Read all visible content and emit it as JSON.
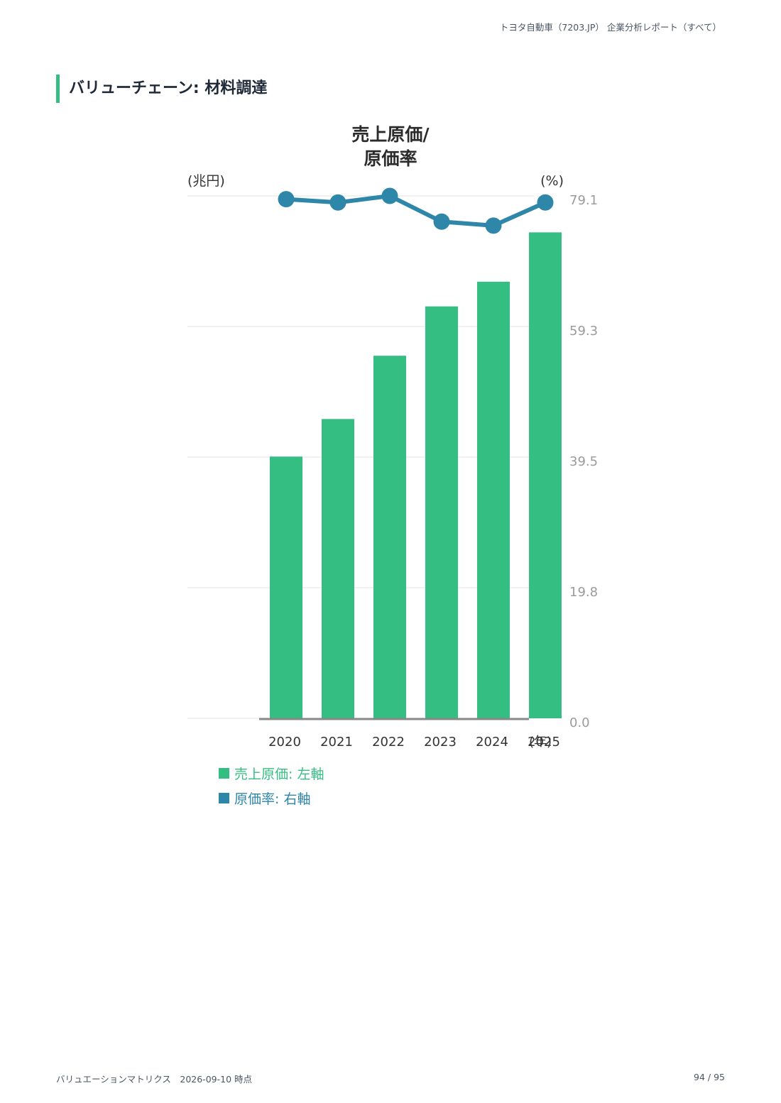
{
  "header": {
    "report_title": "トヨタ自動車（7203.JP） 企業分析レポート（すべて）"
  },
  "section": {
    "title": "バリューチェーン: 材料調達"
  },
  "chart_data": {
    "type": "bar",
    "title_lines": [
      "売上原価/",
      "原価率"
    ],
    "left_unit": "(兆円)",
    "right_unit": "(%)",
    "x_unit": "(年)",
    "categories": [
      "2020",
      "2021",
      "2022",
      "2023",
      "2024",
      "2025"
    ],
    "series": [
      {
        "name": "売上原価",
        "type": "bar",
        "axis": "left",
        "color": "#35be82",
        "values": [
          24.4,
          27.9,
          33.8,
          38.4,
          40.7,
          45.3
        ]
      },
      {
        "name": "原価率",
        "type": "line",
        "axis": "right",
        "color": "#2e86a8",
        "values": [
          78.6,
          78.1,
          79.1,
          75.2,
          74.6,
          78.1
        ]
      }
    ],
    "left_ylim": [
      0,
      48.7
    ],
    "right_ylim": [
      0,
      79.1
    ],
    "right_ticks": [
      "79.1",
      "59.3",
      "39.5",
      "19.8",
      "0.0"
    ],
    "grid": true,
    "legend": {
      "position": "bottom-left",
      "items": [
        "売上原価: 左軸",
        "原価率: 右軸"
      ]
    }
  },
  "footer": {
    "source": "バリュエーションマトリクス　2026-09-10 時点",
    "page": "94 / 95"
  }
}
